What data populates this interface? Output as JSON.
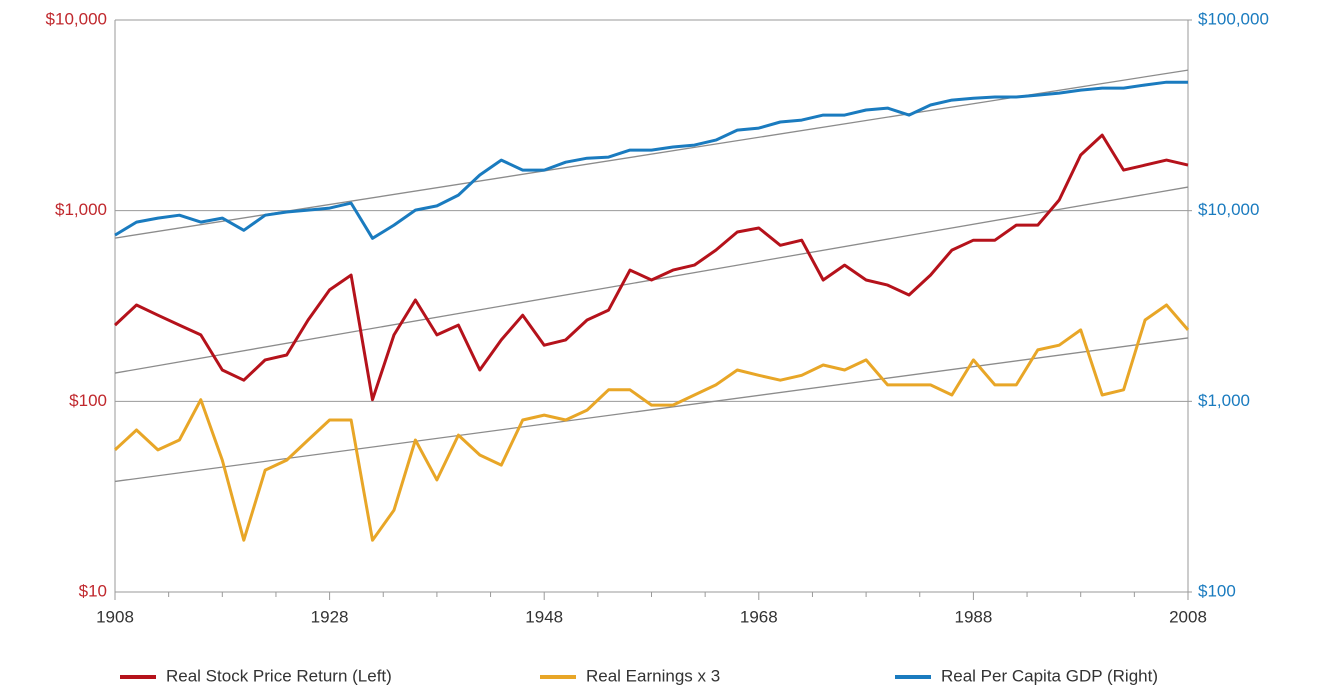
{
  "chart_data": {
    "type": "line",
    "log_y": true,
    "log_y2": true,
    "grid": true,
    "legend": "bottom",
    "x": [
      1908,
      1910,
      1912,
      1914,
      1916,
      1918,
      1920,
      1922,
      1924,
      1926,
      1928,
      1930,
      1932,
      1934,
      1936,
      1938,
      1940,
      1942,
      1944,
      1946,
      1948,
      1950,
      1952,
      1954,
      1956,
      1958,
      1960,
      1962,
      1964,
      1966,
      1968,
      1970,
      1972,
      1974,
      1976,
      1978,
      1980,
      1982,
      1984,
      1986,
      1988,
      1990,
      1992,
      1994,
      1996,
      1998,
      2000,
      2002,
      2004,
      2006,
      2008
    ],
    "series": [
      {
        "name": "Real Stock Price Return (Left)",
        "color": "#b5121b",
        "axis": "y",
        "values": [
          251,
          320,
          283,
          251,
          223,
          146,
          129,
          165,
          175,
          267,
          384,
          459,
          102,
          223,
          340,
          223,
          251,
          146,
          210,
          283,
          197,
          210,
          267,
          301,
          488,
          433,
          488,
          518,
          621,
          773,
          811,
          658,
          700,
          433,
          518,
          433,
          407,
          361,
          459,
          621,
          700,
          700,
          840,
          840,
          1137,
          1958,
          2491,
          1633,
          1734,
          1842,
          1734
        ]
      },
      {
        "name": "Real Earnings x 3",
        "color": "#e8a627",
        "axis": "y",
        "values": [
          55.6,
          70.7,
          55.6,
          62.7,
          102,
          49.2,
          18.7,
          43.6,
          49.2,
          62.7,
          79.8,
          79.8,
          18.7,
          26.9,
          62.7,
          38.7,
          66.5,
          52.3,
          46.3,
          79.8,
          84.7,
          79.8,
          90,
          115,
          115,
          95.6,
          95.6,
          108,
          122,
          146,
          137,
          129,
          137,
          155,
          146,
          165,
          122,
          122,
          122,
          108,
          165,
          122,
          122,
          186,
          197,
          237,
          108,
          115,
          267,
          320,
          237
        ]
      },
      {
        "name": "Real Per Capita GDP (Right)",
        "color": "#1a7bbf",
        "axis": "y2",
        "values": [
          7447,
          8710,
          9146,
          9470,
          8710,
          9146,
          7887,
          9470,
          9840,
          10070,
          10320,
          10960,
          7160,
          8400,
          10070,
          10590,
          12070,
          15380,
          18420,
          16320,
          16320,
          17950,
          18840,
          19100,
          20790,
          20790,
          21580,
          22080,
          23450,
          26470,
          27100,
          29170,
          29860,
          31700,
          31700,
          33710,
          34500,
          31700,
          35810,
          38020,
          38910,
          39440,
          39440,
          40370,
          41380,
          42870,
          43950,
          43950,
          45600,
          47210,
          47210
        ]
      }
    ],
    "trendlines": [
      {
        "axis": "y2",
        "x": [
          1908,
          2008
        ],
        "values": [
          7180,
          54600
        ]
      },
      {
        "axis": "y",
        "x": [
          1908,
          2008
        ],
        "values": [
          140.7,
          1330
        ]
      },
      {
        "axis": "y",
        "x": [
          1908,
          2008
        ],
        "values": [
          38,
          215
        ]
      }
    ],
    "trend_color": "#8c8c8c",
    "xlim": [
      1908,
      2008
    ],
    "xticks": [
      1908,
      1928,
      1948,
      1968,
      1988,
      2008
    ],
    "xminorticks": [
      1913,
      1918,
      1923,
      1933,
      1938,
      1943,
      1953,
      1958,
      1963,
      1973,
      1978,
      1983,
      1993,
      1998,
      2003
    ],
    "ylim": [
      10,
      10000
    ],
    "yticks": [
      {
        "value": 10,
        "label": "$10"
      },
      {
        "value": 100,
        "label": "$100"
      },
      {
        "value": 1000,
        "label": "$1,000"
      },
      {
        "value": 10000,
        "label": "$10,000"
      }
    ],
    "y_color": "#c0282d",
    "y2lim": [
      100,
      100000
    ],
    "y2ticks": [
      {
        "value": 100,
        "label": "$100"
      },
      {
        "value": 1000,
        "label": "$1,000"
      },
      {
        "value": 10000,
        "label": "$10,000"
      },
      {
        "value": 100000,
        "label": "$100,000"
      }
    ],
    "y2_color": "#1a7bbf"
  }
}
